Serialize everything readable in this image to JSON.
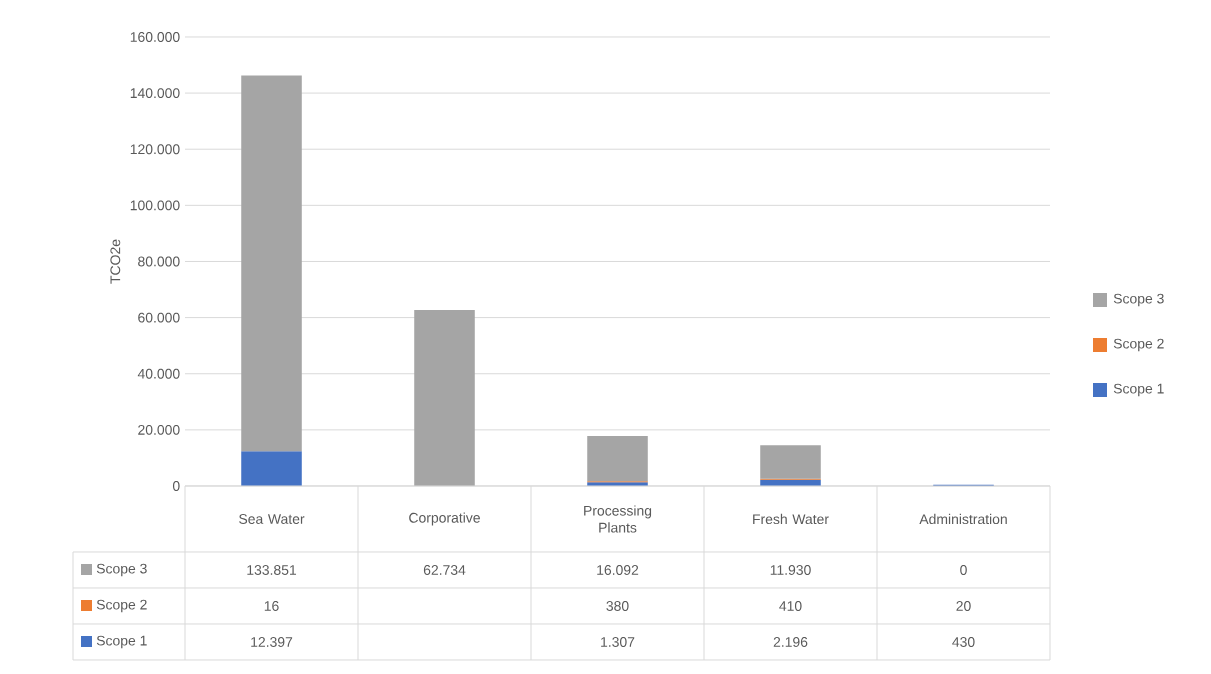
{
  "chart_data": {
    "type": "bar",
    "stacked": true,
    "ylabel": "TCO2e",
    "categories": [
      "Sea Water",
      "Corporative",
      "Processing Plants",
      "Fresh Water",
      "Administration"
    ],
    "series": [
      {
        "name": "Scope 1",
        "color": "#4472c4",
        "values": [
          12397,
          null,
          1307,
          2196,
          430
        ],
        "value_labels": [
          "12.397",
          null,
          "1.307",
          "2.196",
          "430"
        ]
      },
      {
        "name": "Scope 2",
        "color": "#ed7d31",
        "values": [
          16,
          null,
          380,
          410,
          20
        ],
        "value_labels": [
          "16",
          null,
          "380",
          "410",
          "20"
        ]
      },
      {
        "name": "Scope 3",
        "color": "#a5a5a5",
        "values": [
          133851,
          62734,
          16092,
          11930,
          0
        ],
        "value_labels": [
          "133.851",
          "62.734",
          "16.092",
          "11.930",
          "0"
        ]
      }
    ],
    "ylim": [
      0,
      160000
    ],
    "yticks": [
      0,
      {
        "value": 20000,
        "label": "20.000"
      },
      {
        "value": 40000,
        "label": "40.000"
      },
      {
        "value": 60000,
        "label": "60.000"
      },
      {
        "value": 80000,
        "label": "80.000"
      },
      {
        "value": 100000,
        "label": "100.000"
      },
      {
        "value": 120000,
        "label": "120.000"
      },
      {
        "value": 140000,
        "label": "140.000"
      },
      {
        "value": 160000,
        "label": "160.000"
      }
    ],
    "grid": "y",
    "legend": "right"
  }
}
